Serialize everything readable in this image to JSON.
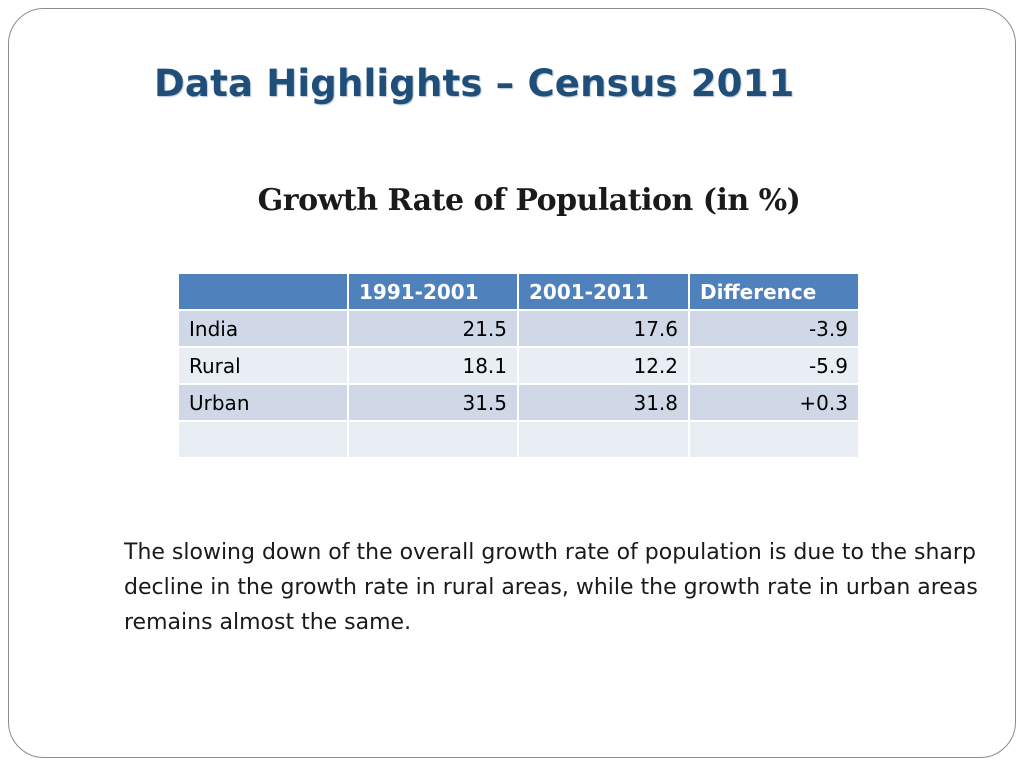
{
  "title": "Data Highlights – Census 2011",
  "subtitle": "Growth Rate of Population (in %)",
  "table": {
    "headers": [
      "",
      "1991-2001",
      "2001-2011",
      "Difference"
    ],
    "rows": [
      [
        "India",
        "21.5",
        "17.6",
        "-3.9"
      ],
      [
        "Rural",
        "18.1",
        "12.2",
        "-5.9"
      ],
      [
        "Urban",
        "31.5",
        "31.8",
        "+0.3"
      ],
      [
        "",
        "",
        "",
        ""
      ]
    ]
  },
  "note": "The slowing down of the overall growth rate of population is due to the sharp decline in the growth rate in rural areas, while the growth rate in urban areas remains almost the same.",
  "colors": {
    "title": "#1f4e79",
    "header_bg": "#4f81bd",
    "row_odd_bg": "#d0d8e8",
    "row_even_bg": "#e9edf4"
  }
}
